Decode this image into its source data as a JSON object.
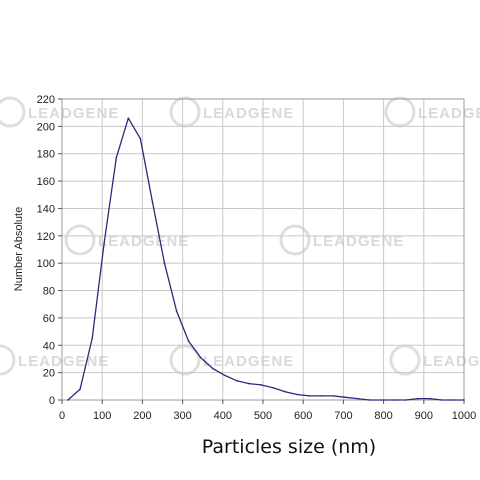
{
  "watermark": {
    "text": "LEADGENE"
  },
  "chart_data": {
    "type": "line",
    "title": "",
    "xlabel": "Particles size (nm)",
    "ylabel": "Number Absolute",
    "xlim": [
      0,
      1000
    ],
    "ylim": [
      0,
      220
    ],
    "xticks": [
      0,
      100,
      200,
      300,
      400,
      500,
      600,
      700,
      800,
      900,
      1000
    ],
    "yticks": [
      0,
      20,
      40,
      60,
      80,
      100,
      120,
      140,
      160,
      180,
      200,
      220
    ],
    "grid": true,
    "legend": "none",
    "colors": {
      "line": "#2b2a7a",
      "grid": "#c8c8c8",
      "frame": "#9a9a9a"
    },
    "series": [
      {
        "x": [
          15,
          45,
          75,
          105,
          135,
          165,
          195,
          225,
          255,
          285,
          315,
          345,
          375,
          405,
          435,
          465,
          495,
          525,
          555,
          585,
          615,
          645,
          675,
          705,
          735,
          765,
          795,
          825,
          855,
          885,
          915,
          945,
          975,
          1000
        ],
        "values": [
          0,
          8,
          45,
          115,
          177,
          206,
          191,
          145,
          100,
          65,
          43,
          31,
          23,
          18,
          14,
          12,
          11,
          9,
          6,
          4,
          3,
          3,
          3,
          2,
          1,
          0,
          0,
          0,
          0,
          1,
          1,
          0,
          0,
          0
        ]
      }
    ]
  }
}
